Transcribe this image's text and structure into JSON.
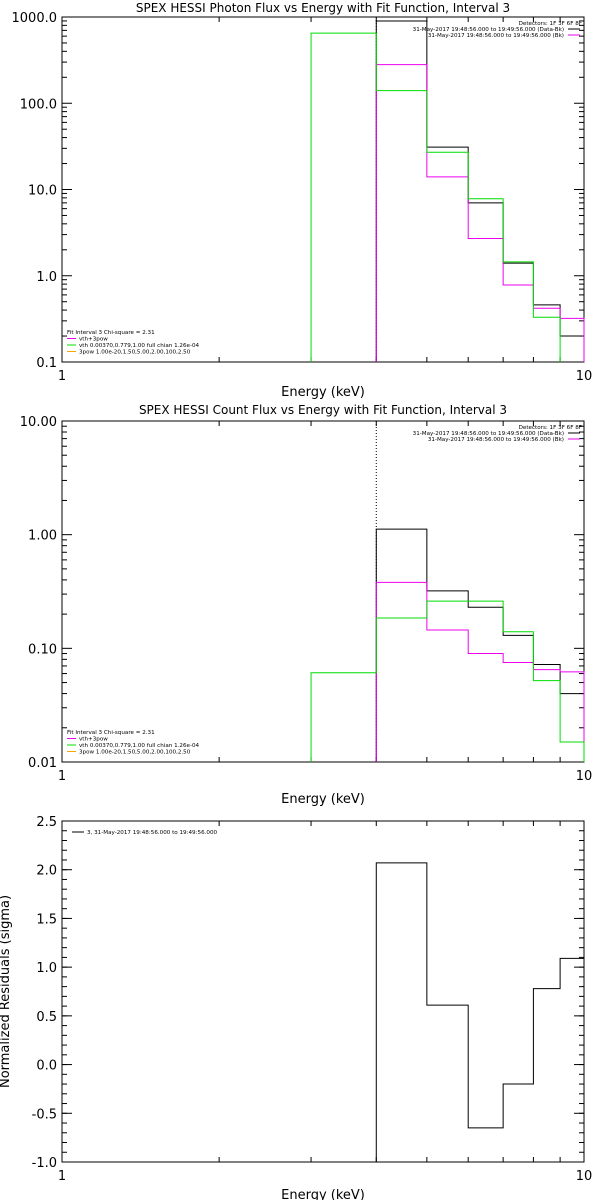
{
  "chart_data": [
    {
      "type": "line",
      "title": "SPEX HESSI Photon Flux vs Energy with Fit Function, Interval 3",
      "xlabel": "Energy (keV)",
      "ylabel": "",
      "x_scale": "log",
      "y_scale": "log",
      "xlim": [
        1,
        10
      ],
      "ylim": [
        0.1,
        1000
      ],
      "x_ticks": [
        {
          "v": 1,
          "label": "1"
        },
        {
          "v": 10,
          "label": "10"
        }
      ],
      "y_ticks": [
        {
          "v": 0.1,
          "label": "0.1"
        },
        {
          "v": 1,
          "label": "1.0"
        },
        {
          "v": 10,
          "label": "10.0"
        },
        {
          "v": 100,
          "label": "100.0"
        },
        {
          "v": 1000,
          "label": "1000.0"
        }
      ],
      "vline_x": 4,
      "legend_right": [
        "Detectors: 1F 3F 6F 8F",
        "31-May-2017 19:48:56.000 to 19:49:56.000 (Data-Bk)",
        "31-May-2017 19:48:56.000 to 19:49:56.000 (Bk)"
      ],
      "legend_left": [
        "Fit Interval 3   Chi-square = 2.31",
        "vth+3pow",
        "vth 0.00370,0.779,1.00  full chian 1.26e-04",
        "3pow 1.00e-20,1.50,5.00,2.00,100,2.50"
      ],
      "colors": {
        "data": "#000000",
        "fit": "#ee00ee",
        "vth": "#00dd00",
        "pow": "#eeaa00"
      },
      "series": [
        {
          "role": "data",
          "edges": [
            4,
            5,
            6,
            7,
            8,
            9,
            10
          ],
          "values": [
            900,
            31,
            7,
            1.4,
            0.46,
            0.2
          ]
        },
        {
          "role": "fit",
          "edges": [
            4,
            5,
            6,
            7,
            8,
            9,
            10
          ],
          "values": [
            280,
            14,
            2.7,
            0.78,
            0.42,
            0.32
          ]
        },
        {
          "role": "vth",
          "edges": [
            3,
            4,
            5,
            6,
            7,
            8,
            9
          ],
          "values": [
            650,
            140,
            27,
            7.8,
            1.45,
            0.33
          ]
        }
      ]
    },
    {
      "type": "line",
      "title": "SPEX HESSI Count Flux vs Energy with Fit Function, Interval 3",
      "xlabel": "Energy (keV)",
      "ylabel": "",
      "x_scale": "log",
      "y_scale": "log",
      "xlim": [
        1,
        10
      ],
      "ylim": [
        0.01,
        10
      ],
      "x_ticks": [
        {
          "v": 1,
          "label": "1"
        },
        {
          "v": 10,
          "label": "10"
        }
      ],
      "y_ticks": [
        {
          "v": 0.01,
          "label": "0.01"
        },
        {
          "v": 0.1,
          "label": "0.10"
        },
        {
          "v": 1,
          "label": "1.00"
        },
        {
          "v": 10,
          "label": "10.00"
        }
      ],
      "vline_x": 4,
      "legend_right": [
        "Detectors: 1F 3F 6F 8F",
        "31-May-2017 19:48:56.000 to 19:49:56.000 (Data-Bk)",
        "31-May-2017 19:48:56.000 to 19:49:56.000 (Bk)"
      ],
      "legend_left": [
        "Fit Interval 3   Chi-square = 2.31",
        "vth+3pow",
        "vth 0.00370,0.779,1.00  full chian 1.26e-04",
        "3pow 1.00e-20,1.50,5.00,2.00,100,2.50"
      ],
      "colors": {
        "data": "#000000",
        "fit": "#ee00ee",
        "vth": "#00dd00",
        "pow": "#eeaa00"
      },
      "series": [
        {
          "role": "data",
          "edges": [
            4,
            5,
            6,
            7,
            8,
            9,
            10
          ],
          "values": [
            1.12,
            0.32,
            0.23,
            0.13,
            0.072,
            0.04
          ]
        },
        {
          "role": "fit",
          "edges": [
            4,
            5,
            6,
            7,
            8,
            9,
            10
          ],
          "values": [
            0.38,
            0.145,
            0.09,
            0.075,
            0.065,
            0.062
          ]
        },
        {
          "role": "vth",
          "edges": [
            3,
            4,
            5,
            6,
            7,
            8,
            9,
            10
          ],
          "values": [
            0.061,
            0.185,
            0.26,
            0.26,
            0.14,
            0.052,
            0.015
          ]
        }
      ]
    },
    {
      "type": "line",
      "title": "",
      "xlabel": "Energy (keV)",
      "ylabel": "Normalized Residuals (sigma)",
      "x_scale": "log",
      "y_scale": "linear",
      "xlim": [
        1,
        10
      ],
      "ylim": [
        -1,
        2.5
      ],
      "x_ticks": [
        {
          "v": 1,
          "label": "1"
        },
        {
          "v": 10,
          "label": "10"
        }
      ],
      "y_ticks": [
        {
          "v": -1,
          "label": "-1.0"
        },
        {
          "v": -0.5,
          "label": "-0.5"
        },
        {
          "v": 0,
          "label": "0.0"
        },
        {
          "v": 0.5,
          "label": "0.5"
        },
        {
          "v": 1,
          "label": "1.0"
        },
        {
          "v": 1.5,
          "label": "1.5"
        },
        {
          "v": 2,
          "label": "2.0"
        },
        {
          "v": 2.5,
          "label": "2.5"
        }
      ],
      "legend_left": [
        "3, 31-May-2017 19:48:56.000 to 19:49:56.000"
      ],
      "colors": {
        "data": "#000000"
      },
      "series": [
        {
          "role": "data",
          "edges": [
            4,
            5,
            6,
            7,
            8,
            9,
            10
          ],
          "values": [
            2.07,
            0.61,
            -0.65,
            -0.2,
            0.78,
            1.09
          ]
        }
      ]
    }
  ]
}
